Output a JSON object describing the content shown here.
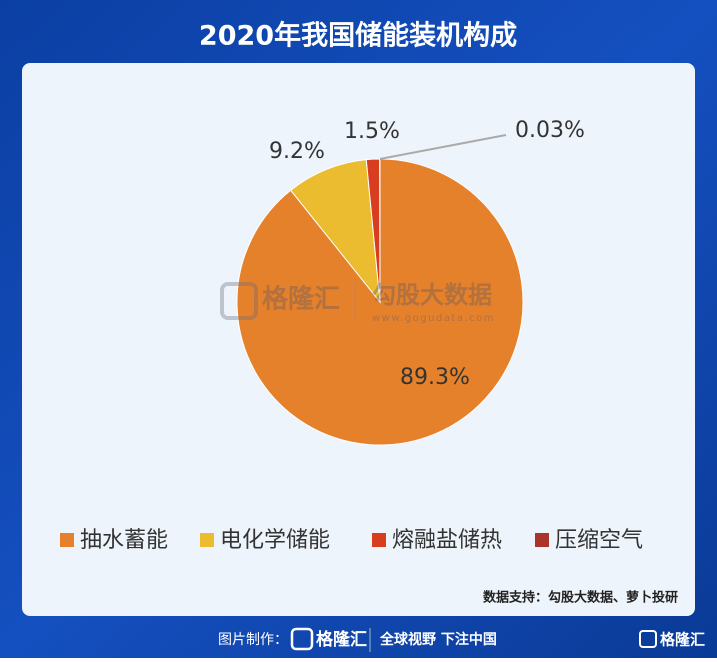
{
  "chart_data": {
    "type": "pie",
    "title": "2020年我国储能装机构成",
    "categories": [
      "抽水蓄能",
      "电化学储能",
      "熔融盐储热",
      "压缩空气"
    ],
    "values": [
      89.3,
      9.2,
      1.5,
      0.03
    ],
    "value_labels": [
      "89.3%",
      "9.2%",
      "1.5%",
      "0.03%"
    ],
    "colors": [
      "#e5812a",
      "#ebbb30",
      "#d73d1e",
      "#a8342a"
    ],
    "legend": "bottom",
    "source": "数据支持：勾股大数据、萝卜投研"
  },
  "watermark": {
    "brand": "格隆汇",
    "text": "勾股大数据",
    "url": "www.gogudata.com"
  },
  "footer": {
    "made_by": "图片制作：",
    "brand": "格隆汇",
    "slogan": "全球视野 下注中国",
    "corner_brand": "格隆汇"
  }
}
